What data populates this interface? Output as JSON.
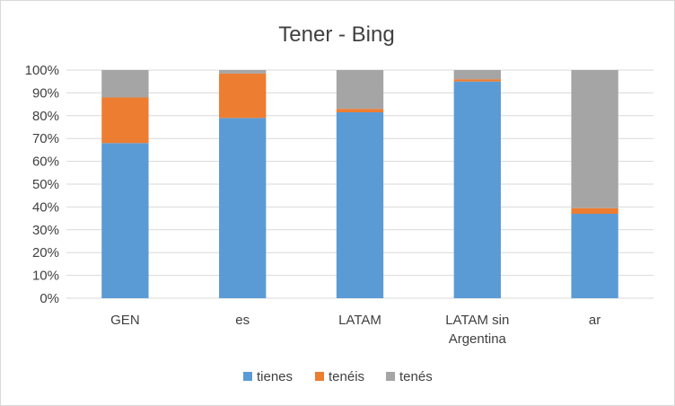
{
  "chart_data": {
    "type": "bar",
    "stacked": true,
    "title": "Tener - Bing",
    "xlabel": "",
    "ylabel": "",
    "ylim": [
      0,
      100
    ],
    "y_ticks": [
      "0%",
      "10%",
      "20%",
      "30%",
      "40%",
      "50%",
      "60%",
      "70%",
      "80%",
      "90%",
      "100%"
    ],
    "categories": [
      [
        "GEN"
      ],
      [
        "es"
      ],
      [
        "LATAM"
      ],
      [
        "LATAM sin",
        "Argentina"
      ],
      [
        "ar"
      ]
    ],
    "series": [
      {
        "name": "tienes",
        "color": "#5b9bd5",
        "values": [
          68,
          79,
          81.5,
          95,
          37
        ]
      },
      {
        "name": "tenéis",
        "color": "#ed7d31",
        "values": [
          20,
          19.5,
          1.5,
          1,
          2.5
        ]
      },
      {
        "name": "tenés",
        "color": "#a5a5a5",
        "values": [
          12,
          1.5,
          17,
          4,
          60.5
        ]
      }
    ],
    "grid": true,
    "legend": "bottom"
  }
}
